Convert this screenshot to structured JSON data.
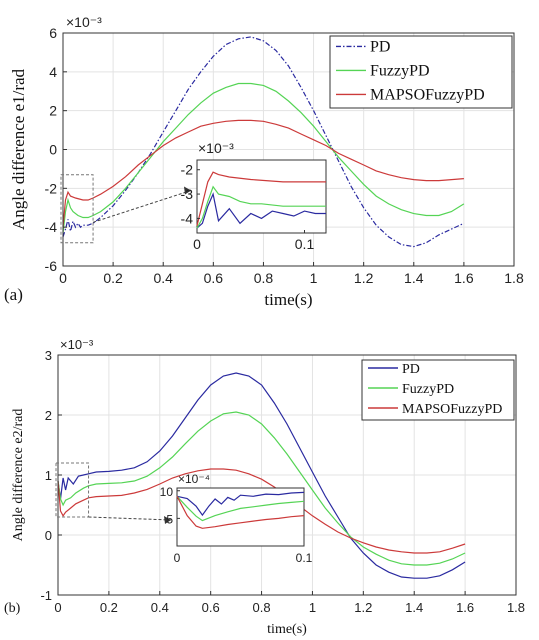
{
  "chart_data": [
    {
      "type": "line",
      "panel_label": "(a)",
      "xlabel": "time(s)",
      "ylabel": "Angle difference e1/rad",
      "y_multiplier": "×10⁻³",
      "xlim": [
        0,
        1.8
      ],
      "ylim": [
        -6,
        6
      ],
      "xticks": [
        "0",
        "0.2",
        "0.4",
        "0.6",
        "0.8",
        "1",
        "1.2",
        "1.4",
        "1.6",
        "1.8"
      ],
      "yticks": [
        "-6",
        "-4",
        "-2",
        "0",
        "2",
        "4",
        "6"
      ],
      "grid": true,
      "legend_position": "top-right",
      "colors": {
        "PD": "#2a2aa0",
        "FuzzyPD": "#55d455",
        "MAPSOFuzzyPD": "#cc3a3a"
      },
      "series": [
        {
          "name": "PD",
          "style": "dashdot",
          "x": [
            0,
            0.01,
            0.02,
            0.03,
            0.04,
            0.05,
            0.06,
            0.07,
            0.08,
            0.1,
            0.12,
            0.15,
            0.2,
            0.25,
            0.3,
            0.35,
            0.4,
            0.45,
            0.5,
            0.55,
            0.6,
            0.65,
            0.7,
            0.75,
            0.8,
            0.85,
            0.9,
            0.95,
            1.0,
            1.05,
            1.1,
            1.15,
            1.2,
            1.25,
            1.3,
            1.35,
            1.4,
            1.45,
            1.5,
            1.55,
            1.6
          ],
          "y": [
            -4.5,
            -4.1,
            -3.6,
            -4.2,
            -3.7,
            -4.0,
            -3.8,
            -4.0,
            -3.9,
            -3.9,
            -3.8,
            -3.5,
            -2.9,
            -2.1,
            -1.2,
            -0.2,
            0.9,
            2.0,
            3.1,
            4.0,
            4.8,
            5.4,
            5.7,
            5.8,
            5.6,
            5.1,
            4.3,
            3.2,
            2.0,
            0.7,
            -0.6,
            -1.9,
            -3.0,
            -3.9,
            -4.5,
            -4.9,
            -5.0,
            -4.8,
            -4.4,
            -4.1,
            -3.8
          ]
        },
        {
          "name": "FuzzyPD",
          "style": "solid",
          "x": [
            0,
            0.01,
            0.02,
            0.03,
            0.04,
            0.06,
            0.08,
            0.1,
            0.12,
            0.15,
            0.2,
            0.25,
            0.3,
            0.35,
            0.4,
            0.45,
            0.5,
            0.55,
            0.6,
            0.65,
            0.7,
            0.75,
            0.8,
            0.85,
            0.9,
            0.95,
            1.0,
            1.05,
            1.1,
            1.15,
            1.2,
            1.25,
            1.3,
            1.35,
            1.4,
            1.45,
            1.5,
            1.55,
            1.6
          ],
          "y": [
            -4.3,
            -3.2,
            -2.6,
            -3.0,
            -3.2,
            -3.4,
            -3.5,
            -3.5,
            -3.4,
            -3.2,
            -2.7,
            -2.0,
            -1.2,
            -0.4,
            0.4,
            1.1,
            1.8,
            2.4,
            2.9,
            3.2,
            3.4,
            3.4,
            3.3,
            3.0,
            2.5,
            1.9,
            1.2,
            0.4,
            -0.4,
            -1.1,
            -1.8,
            -2.4,
            -2.8,
            -3.1,
            -3.3,
            -3.4,
            -3.4,
            -3.2,
            -2.8
          ]
        },
        {
          "name": "MAPSOFuzzyPD",
          "style": "solid",
          "x": [
            0,
            0.01,
            0.02,
            0.03,
            0.05,
            0.08,
            0.1,
            0.12,
            0.15,
            0.2,
            0.25,
            0.3,
            0.35,
            0.4,
            0.45,
            0.5,
            0.55,
            0.6,
            0.65,
            0.7,
            0.75,
            0.8,
            0.85,
            0.9,
            0.95,
            1.0,
            1.05,
            1.1,
            1.15,
            1.2,
            1.25,
            1.3,
            1.35,
            1.4,
            1.45,
            1.5,
            1.55,
            1.6
          ],
          "y": [
            -4.0,
            -2.6,
            -2.2,
            -2.4,
            -2.5,
            -2.6,
            -2.6,
            -2.5,
            -2.3,
            -1.9,
            -1.4,
            -0.8,
            -0.3,
            0.2,
            0.6,
            0.9,
            1.2,
            1.35,
            1.45,
            1.5,
            1.5,
            1.45,
            1.3,
            1.1,
            0.8,
            0.5,
            0.2,
            -0.2,
            -0.5,
            -0.8,
            -1.1,
            -1.3,
            -1.45,
            -1.55,
            -1.6,
            -1.6,
            -1.55,
            -1.5
          ]
        }
      ],
      "inset": {
        "xlim": [
          0,
          0.12
        ],
        "ylim": [
          -4.6,
          -1.6
        ],
        "xticks": [
          "0",
          "0.1"
        ],
        "yticks": [
          "-2",
          "-3",
          "-4"
        ],
        "y_multiplier": "×10⁻³",
        "zoom_box": {
          "x": [
            0,
            0.12
          ],
          "y": [
            -4.8,
            -1.3
          ]
        },
        "series": [
          {
            "name": "PD",
            "x": [
              0,
              0.005,
              0.01,
              0.015,
              0.02,
              0.03,
              0.04,
              0.05,
              0.06,
              0.07,
              0.08,
              0.09,
              0.1,
              0.11,
              0.12
            ],
            "y": [
              -4.4,
              -4.2,
              -3.5,
              -3.0,
              -4.1,
              -3.6,
              -4.2,
              -3.8,
              -4.0,
              -3.7,
              -3.8,
              -3.9,
              -3.7,
              -3.8,
              -3.8
            ]
          },
          {
            "name": "FuzzyPD",
            "x": [
              0,
              0.005,
              0.01,
              0.015,
              0.02,
              0.03,
              0.04,
              0.05,
              0.06,
              0.08,
              0.1,
              0.12
            ],
            "y": [
              -4.4,
              -4.0,
              -3.3,
              -2.7,
              -3.0,
              -3.1,
              -3.3,
              -3.4,
              -3.4,
              -3.5,
              -3.5,
              -3.5
            ]
          },
          {
            "name": "MAPSOFuzzyPD",
            "x": [
              0,
              0.005,
              0.01,
              0.015,
              0.02,
              0.03,
              0.05,
              0.08,
              0.1,
              0.12
            ],
            "y": [
              -4.3,
              -3.4,
              -2.5,
              -2.1,
              -2.2,
              -2.3,
              -2.4,
              -2.5,
              -2.5,
              -2.5
            ]
          }
        ]
      }
    },
    {
      "type": "line",
      "panel_label": "(b)",
      "xlabel": "time(s)",
      "ylabel": "Angle difference e2/rad",
      "y_multiplier": "×10⁻³",
      "xlim": [
        0,
        1.8
      ],
      "ylim": [
        -1,
        3
      ],
      "xticks": [
        "0",
        "0.2",
        "0.4",
        "0.6",
        "0.8",
        "1",
        "1.2",
        "1.4",
        "1.6",
        "1.8"
      ],
      "yticks": [
        "-1",
        "0",
        "1",
        "2",
        "3"
      ],
      "grid": true,
      "legend_position": "top-right",
      "colors": {
        "PD": "#2a2aa0",
        "FuzzyPD": "#55d455",
        "MAPSOFuzzyPD": "#cc3a3a"
      },
      "series": [
        {
          "name": "PD",
          "style": "solid",
          "x": [
            0,
            0.01,
            0.02,
            0.03,
            0.04,
            0.06,
            0.08,
            0.1,
            0.12,
            0.15,
            0.2,
            0.25,
            0.3,
            0.35,
            0.4,
            0.45,
            0.5,
            0.55,
            0.6,
            0.65,
            0.7,
            0.75,
            0.8,
            0.85,
            0.9,
            0.95,
            1.0,
            1.05,
            1.1,
            1.15,
            1.2,
            1.25,
            1.3,
            1.35,
            1.4,
            1.45,
            1.5,
            1.55,
            1.6
          ],
          "y": [
            0.9,
            0.6,
            0.95,
            0.75,
            0.95,
            0.85,
            0.98,
            1.0,
            1.02,
            1.05,
            1.06,
            1.08,
            1.12,
            1.22,
            1.4,
            1.65,
            1.95,
            2.25,
            2.5,
            2.65,
            2.7,
            2.65,
            2.5,
            2.2,
            1.85,
            1.45,
            1.05,
            0.65,
            0.3,
            -0.05,
            -0.3,
            -0.5,
            -0.62,
            -0.7,
            -0.72,
            -0.72,
            -0.68,
            -0.58,
            -0.45
          ]
        },
        {
          "name": "FuzzyPD",
          "style": "solid",
          "x": [
            0,
            0.01,
            0.02,
            0.03,
            0.05,
            0.07,
            0.1,
            0.12,
            0.15,
            0.2,
            0.25,
            0.3,
            0.35,
            0.4,
            0.45,
            0.5,
            0.55,
            0.6,
            0.65,
            0.7,
            0.75,
            0.8,
            0.85,
            0.9,
            0.95,
            1.0,
            1.05,
            1.1,
            1.15,
            1.2,
            1.25,
            1.3,
            1.35,
            1.4,
            1.45,
            1.5,
            1.55,
            1.6
          ],
          "y": [
            0.9,
            0.6,
            0.5,
            0.58,
            0.62,
            0.7,
            0.78,
            0.82,
            0.85,
            0.86,
            0.87,
            0.9,
            0.98,
            1.12,
            1.3,
            1.52,
            1.73,
            1.9,
            2.02,
            2.05,
            2.0,
            1.85,
            1.62,
            1.35,
            1.05,
            0.75,
            0.45,
            0.2,
            -0.03,
            -0.2,
            -0.32,
            -0.42,
            -0.48,
            -0.5,
            -0.5,
            -0.47,
            -0.4,
            -0.3
          ]
        },
        {
          "name": "MAPSOFuzzyPD",
          "style": "solid",
          "x": [
            0,
            0.01,
            0.02,
            0.03,
            0.05,
            0.07,
            0.1,
            0.12,
            0.15,
            0.2,
            0.25,
            0.3,
            0.35,
            0.4,
            0.45,
            0.5,
            0.55,
            0.6,
            0.65,
            0.7,
            0.75,
            0.8,
            0.85,
            0.9,
            0.95,
            1.0,
            1.05,
            1.1,
            1.15,
            1.2,
            1.25,
            1.3,
            1.35,
            1.4,
            1.45,
            1.5,
            1.55,
            1.6
          ],
          "y": [
            0.9,
            0.4,
            0.32,
            0.38,
            0.45,
            0.52,
            0.58,
            0.62,
            0.64,
            0.65,
            0.66,
            0.7,
            0.76,
            0.85,
            0.95,
            1.02,
            1.07,
            1.1,
            1.1,
            1.08,
            1.02,
            0.93,
            0.8,
            0.65,
            0.48,
            0.32,
            0.18,
            0.05,
            -0.05,
            -0.13,
            -0.2,
            -0.25,
            -0.28,
            -0.3,
            -0.3,
            -0.28,
            -0.22,
            -0.15
          ]
        }
      ],
      "inset": {
        "xlim": [
          0,
          0.1
        ],
        "ylim": [
          0,
          10.5
        ],
        "xticks": [
          "0",
          "0.1"
        ],
        "yticks": [
          "5",
          "10"
        ],
        "y_multiplier": "×10⁻⁴",
        "zoom_box": {
          "x": [
            0,
            0.12
          ],
          "y": [
            0.3,
            1.2
          ]
        },
        "series": [
          {
            "name": "PD",
            "x": [
              0,
              0.008,
              0.015,
              0.02,
              0.025,
              0.03,
              0.035,
              0.04,
              0.045,
              0.05,
              0.06,
              0.07,
              0.08,
              0.09,
              0.1
            ],
            "y": [
              9.0,
              8.6,
              7.2,
              5.6,
              7.2,
              8.5,
              7.6,
              8.8,
              8.3,
              9.2,
              9.0,
              9.4,
              9.3,
              9.6,
              9.7
            ]
          },
          {
            "name": "FuzzyPD",
            "x": [
              0,
              0.008,
              0.015,
              0.02,
              0.03,
              0.04,
              0.05,
              0.06,
              0.07,
              0.08,
              0.09,
              0.1
            ],
            "y": [
              9.0,
              7.0,
              5.4,
              4.6,
              5.5,
              6.2,
              6.8,
              7.1,
              7.4,
              7.7,
              7.9,
              8.1
            ]
          },
          {
            "name": "MAPSOFuzzyPD",
            "x": [
              0,
              0.008,
              0.015,
              0.02,
              0.03,
              0.04,
              0.05,
              0.06,
              0.07,
              0.08,
              0.09,
              0.1
            ],
            "y": [
              9.0,
              5.5,
              3.6,
              3.2,
              3.5,
              3.9,
              4.2,
              4.5,
              4.8,
              5.0,
              5.3,
              5.5
            ]
          }
        ]
      }
    }
  ]
}
